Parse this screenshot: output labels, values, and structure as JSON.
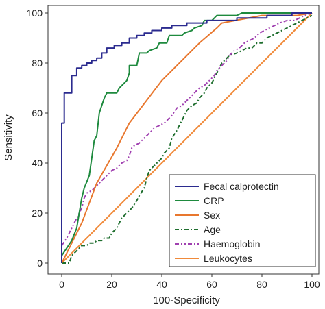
{
  "chart_data": {
    "type": "line",
    "title": "",
    "xlabel": "100-Specificity",
    "ylabel": "Sensitivity",
    "xlim": [
      0,
      100
    ],
    "ylim": [
      0,
      100
    ],
    "xticks": [
      0,
      20,
      40,
      60,
      80,
      100
    ],
    "yticks": [
      0,
      20,
      40,
      60,
      80,
      100
    ],
    "grid": false,
    "legend": "bottom-right",
    "series": [
      {
        "name": "Fecal calprotectin",
        "color": "#2b2b8f",
        "dash": "solid",
        "points": [
          [
            0,
            0
          ],
          [
            0,
            56
          ],
          [
            1,
            56
          ],
          [
            1,
            68
          ],
          [
            4,
            68
          ],
          [
            4,
            75
          ],
          [
            6,
            75
          ],
          [
            6,
            78
          ],
          [
            8,
            78
          ],
          [
            8,
            79
          ],
          [
            10,
            79
          ],
          [
            10,
            80
          ],
          [
            12,
            80
          ],
          [
            12,
            81
          ],
          [
            14,
            81
          ],
          [
            14,
            82
          ],
          [
            16,
            82
          ],
          [
            16,
            84
          ],
          [
            18,
            84
          ],
          [
            18,
            86
          ],
          [
            21,
            86
          ],
          [
            21,
            87
          ],
          [
            24,
            87
          ],
          [
            24,
            88
          ],
          [
            27,
            88
          ],
          [
            27,
            90
          ],
          [
            30,
            90
          ],
          [
            30,
            91
          ],
          [
            33,
            91
          ],
          [
            33,
            92
          ],
          [
            36,
            92
          ],
          [
            36,
            93
          ],
          [
            40,
            93
          ],
          [
            40,
            94
          ],
          [
            44,
            94
          ],
          [
            44,
            95
          ],
          [
            50,
            95
          ],
          [
            50,
            96
          ],
          [
            58,
            96
          ],
          [
            58,
            97
          ],
          [
            70,
            97
          ],
          [
            70,
            98
          ],
          [
            82,
            98
          ],
          [
            82,
            99
          ],
          [
            92,
            99
          ],
          [
            92,
            100
          ],
          [
            100,
            100
          ]
        ]
      },
      {
        "name": "CRP",
        "color": "#1e8a3e",
        "dash": "solid",
        "points": [
          [
            0,
            3
          ],
          [
            2,
            6
          ],
          [
            4,
            9
          ],
          [
            6,
            14
          ],
          [
            7,
            20
          ],
          [
            8,
            26
          ],
          [
            9,
            30
          ],
          [
            11,
            35
          ],
          [
            12,
            42
          ],
          [
            13,
            49
          ],
          [
            14,
            51
          ],
          [
            15,
            60
          ],
          [
            16,
            63
          ],
          [
            17,
            66
          ],
          [
            18,
            68
          ],
          [
            22,
            68
          ],
          [
            23,
            70
          ],
          [
            24,
            71
          ],
          [
            26,
            73
          ],
          [
            27,
            76
          ],
          [
            27,
            79
          ],
          [
            30,
            79
          ],
          [
            31,
            84
          ],
          [
            34,
            84
          ],
          [
            35,
            85
          ],
          [
            38,
            86
          ],
          [
            39,
            88
          ],
          [
            42,
            88
          ],
          [
            43,
            91
          ],
          [
            48,
            91
          ],
          [
            49,
            92
          ],
          [
            52,
            93
          ],
          [
            53,
            94
          ],
          [
            56,
            95
          ],
          [
            57,
            97
          ],
          [
            60,
            97
          ],
          [
            62,
            99
          ],
          [
            70,
            99
          ],
          [
            72,
            100
          ],
          [
            100,
            100
          ]
        ]
      },
      {
        "name": "Sex",
        "color": "#e8772e",
        "dash": "solid",
        "points": [
          [
            0,
            0
          ],
          [
            8,
            16
          ],
          [
            14,
            32
          ],
          [
            22,
            46
          ],
          [
            27,
            56
          ],
          [
            40,
            73
          ],
          [
            55,
            88
          ],
          [
            62,
            94
          ],
          [
            64,
            96
          ],
          [
            80,
            99
          ],
          [
            94,
            99
          ],
          [
            100,
            100
          ]
        ]
      },
      {
        "name": "Age",
        "color": "#1e6e2e",
        "dash": "dashdot",
        "points": [
          [
            0,
            0
          ],
          [
            3,
            0
          ],
          [
            4,
            3
          ],
          [
            6,
            5
          ],
          [
            8,
            7
          ],
          [
            10,
            7
          ],
          [
            11,
            8
          ],
          [
            13,
            8
          ],
          [
            14,
            9
          ],
          [
            16,
            9
          ],
          [
            17,
            10
          ],
          [
            19,
            10
          ],
          [
            20,
            12
          ],
          [
            22,
            14
          ],
          [
            23,
            16
          ],
          [
            24,
            18
          ],
          [
            26,
            20
          ],
          [
            28,
            22
          ],
          [
            30,
            25
          ],
          [
            31,
            27
          ],
          [
            33,
            30
          ],
          [
            34,
            34
          ],
          [
            35,
            37
          ],
          [
            37,
            39
          ],
          [
            38,
            40
          ],
          [
            40,
            42
          ],
          [
            41,
            44
          ],
          [
            43,
            46
          ],
          [
            44,
            50
          ],
          [
            46,
            53
          ],
          [
            47,
            55
          ],
          [
            48,
            57
          ],
          [
            49,
            59
          ],
          [
            50,
            61
          ],
          [
            52,
            63
          ],
          [
            54,
            64
          ],
          [
            55,
            66
          ],
          [
            57,
            68
          ],
          [
            58,
            70
          ],
          [
            60,
            72
          ],
          [
            61,
            74
          ],
          [
            62,
            76
          ],
          [
            63,
            78
          ],
          [
            64,
            80
          ],
          [
            66,
            82
          ],
          [
            67,
            83
          ],
          [
            70,
            84
          ],
          [
            72,
            85
          ],
          [
            74,
            86
          ],
          [
            76,
            86
          ],
          [
            78,
            88
          ],
          [
            80,
            88
          ],
          [
            82,
            90
          ],
          [
            84,
            91
          ],
          [
            86,
            92
          ],
          [
            88,
            93
          ],
          [
            90,
            94
          ],
          [
            92,
            95
          ],
          [
            94,
            96
          ],
          [
            96,
            97
          ],
          [
            98,
            98
          ],
          [
            100,
            99
          ]
        ]
      },
      {
        "name": "Haemoglobin",
        "color": "#a040b0",
        "dash": "dashdotdot",
        "points": [
          [
            0,
            7
          ],
          [
            2,
            10
          ],
          [
            4,
            14
          ],
          [
            6,
            18
          ],
          [
            8,
            22
          ],
          [
            9,
            26
          ],
          [
            10,
            28
          ],
          [
            12,
            29
          ],
          [
            14,
            31
          ],
          [
            16,
            33
          ],
          [
            18,
            35
          ],
          [
            20,
            37
          ],
          [
            22,
            38
          ],
          [
            24,
            40
          ],
          [
            26,
            41
          ],
          [
            27,
            43
          ],
          [
            28,
            46
          ],
          [
            29,
            47
          ],
          [
            31,
            48
          ],
          [
            33,
            50
          ],
          [
            35,
            52
          ],
          [
            37,
            54
          ],
          [
            39,
            55
          ],
          [
            41,
            56
          ],
          [
            43,
            58
          ],
          [
            44,
            59
          ],
          [
            46,
            62
          ],
          [
            48,
            63
          ],
          [
            49,
            64
          ],
          [
            51,
            66
          ],
          [
            53,
            68
          ],
          [
            55,
            70
          ],
          [
            57,
            71
          ],
          [
            59,
            73
          ],
          [
            61,
            75
          ],
          [
            62,
            77
          ],
          [
            64,
            79
          ],
          [
            66,
            81
          ],
          [
            67,
            83
          ],
          [
            69,
            85
          ],
          [
            71,
            86
          ],
          [
            73,
            88
          ],
          [
            75,
            89
          ],
          [
            77,
            90
          ],
          [
            79,
            92
          ],
          [
            81,
            93
          ],
          [
            83,
            94
          ],
          [
            85,
            95
          ],
          [
            87,
            96
          ],
          [
            90,
            97
          ],
          [
            93,
            97
          ],
          [
            95,
            98
          ],
          [
            97,
            99
          ],
          [
            100,
            100
          ]
        ]
      },
      {
        "name": "Leukocytes",
        "color": "#f08a3a",
        "dash": "solid",
        "points": [
          [
            0,
            0
          ],
          [
            10,
            10
          ],
          [
            20,
            20
          ],
          [
            30,
            30
          ],
          [
            40,
            40
          ],
          [
            50,
            50
          ],
          [
            60,
            60
          ],
          [
            70,
            70
          ],
          [
            80,
            80
          ],
          [
            90,
            90
          ],
          [
            100,
            100
          ]
        ]
      }
    ]
  }
}
